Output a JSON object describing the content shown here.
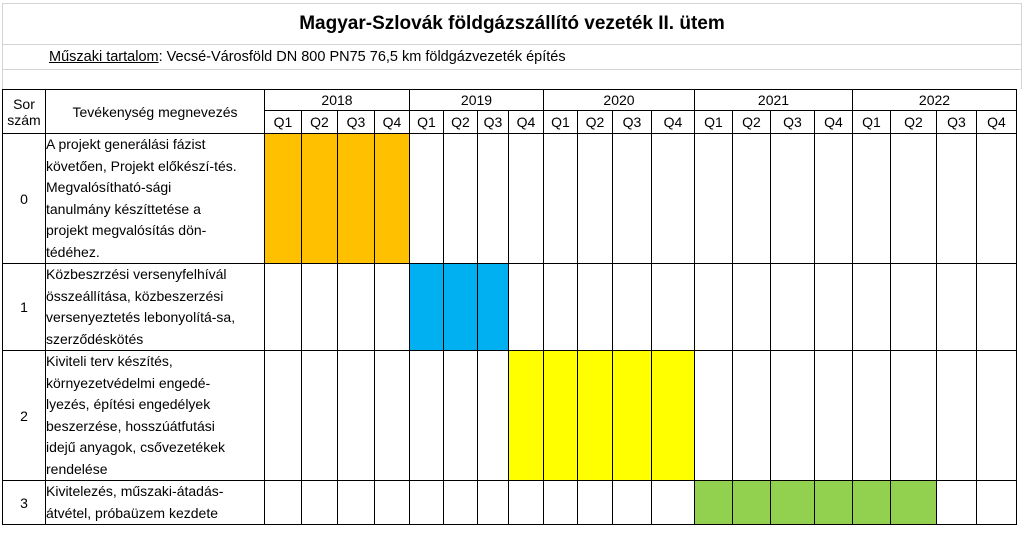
{
  "title": "Magyar-Szlovák földgázszállító vezeték II. ütem",
  "technical": {
    "label": "Műszaki tartalom",
    "text": ": Vecsé-Városföld DN 800 PN75 76,5 km földgázvezeték építés"
  },
  "header": {
    "num_line1": "Sor",
    "num_line2": "szám",
    "activity": "Tevékenység megnevezés"
  },
  "years": [
    "2018",
    "2019",
    "2020",
    "2021",
    "2022"
  ],
  "quarters": [
    "Q1",
    "Q2",
    "Q3",
    "Q4"
  ],
  "colors": {
    "orange": "#ffc000",
    "blue": "#00b0f0",
    "yellow": "#ffff00",
    "green": "#92d050"
  },
  "rows": [
    {
      "num": "0",
      "lines": [
        "A projekt generálási fázist",
        "követően, Projekt előkészí-tés.",
        "Megvalósítható-sági",
        "tanulmány készíttetése a",
        "projekt megvalósítás dön-",
        "tédéhez."
      ],
      "bar_color": "orange",
      "bar_quarters": [
        "2018 Q1",
        "2018 Q2",
        "2018 Q3",
        "2018 Q4"
      ]
    },
    {
      "num": "1",
      "lines": [
        "Közbeszrzési versenyfelhívál",
        "összeállítása, közbeszerzési",
        "versenyeztetés lebonyolítá-sa,",
        "szerződéskötés"
      ],
      "bar_color": "blue",
      "bar_quarters": [
        "2019 Q1",
        "2019 Q2",
        "2019 Q3"
      ]
    },
    {
      "num": "2",
      "lines": [
        "Kiviteli terv készítés,",
        "környezetvédelmi engedé-",
        "lyezés, építési engedélyek",
        "beszerzése, hosszúátfutási",
        "idejű anyagok, csővezetékek",
        "rendelése"
      ],
      "bar_color": "yellow",
      "bar_quarters": [
        "2019 Q4",
        "2020 Q1",
        "2020 Q2",
        "2020 Q3",
        "2020 Q4"
      ]
    },
    {
      "num": "3",
      "lines": [
        "Kivitelezés, műszaki-átadás-",
        "átvétel, próbaüzem kezdete"
      ],
      "bar_color": "green",
      "bar_quarters": [
        "2021 Q1",
        "2021 Q2",
        "2021 Q3",
        "2021 Q4",
        "2022 Q1",
        "2022 Q2"
      ]
    }
  ]
}
